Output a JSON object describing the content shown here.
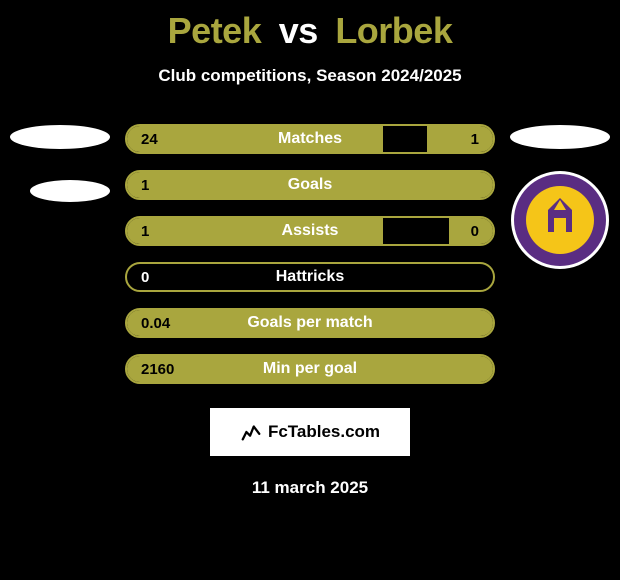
{
  "title": {
    "player1": "Petek",
    "vs": "vs",
    "player2": "Lorbek",
    "player1_color": "#a9a63e",
    "player2_color": "#a9a63e"
  },
  "subtitle": "Club competitions, Season 2024/2025",
  "colors": {
    "background": "#000000",
    "bar_fill": "#a9a63e",
    "bar_border": "#a9a63e",
    "text": "#ffffff",
    "value_text": "#000000",
    "ellipse": "#ffffff",
    "branding_bg": "#ffffff",
    "branding_text": "#000000"
  },
  "stats": [
    {
      "label": "Matches",
      "left_val": "24",
      "right_val": "1",
      "left_pct": 70,
      "right_pct": 18
    },
    {
      "label": "Goals",
      "left_val": "1",
      "right_val": "",
      "left_pct": 100,
      "right_pct": 0
    },
    {
      "label": "Assists",
      "left_val": "1",
      "right_val": "0",
      "left_pct": 70,
      "right_pct": 12
    },
    {
      "label": "Hattricks",
      "left_val": "0",
      "right_val": "",
      "left_pct": 0,
      "right_pct": 0
    },
    {
      "label": "Goals per match",
      "left_val": "0.04",
      "right_val": "",
      "left_pct": 100,
      "right_pct": 0
    },
    {
      "label": "Min per goal",
      "left_val": "2160",
      "right_val": "",
      "left_pct": 100,
      "right_pct": 0
    }
  ],
  "crest": {
    "outer_color": "#5a2d82",
    "inner_color": "#f5c518",
    "ring_text_color": "#f5c518"
  },
  "branding": "FcTables.com",
  "date": "11 march 2025"
}
